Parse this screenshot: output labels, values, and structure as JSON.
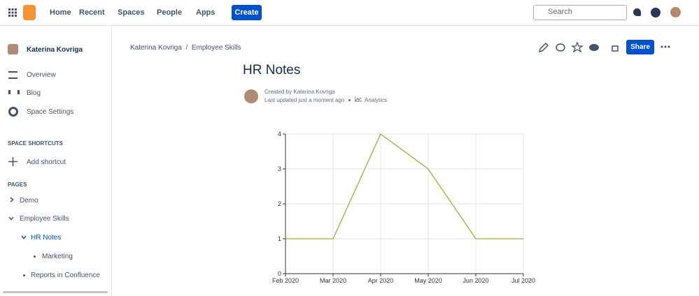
{
  "nav": {
    "items": [
      "Home",
      "Recent",
      "Spaces",
      "People",
      "Apps"
    ],
    "create": "Create",
    "search": "Search"
  },
  "sidebar": {
    "user": "Katerina Kovriga",
    "links": [
      "Overview",
      "Blog",
      "Space Settings"
    ],
    "shortcuts_heading": "SPACE SHORTCUTS",
    "add_shortcut": "Add shortcut",
    "pages_heading": "PAGES",
    "pages": [
      "Demo",
      "Employee Skills",
      "HR Notes",
      "Marketing",
      "Reports in Confluence"
    ]
  },
  "breadcrumb": {
    "items": [
      "Katerina Kovriga",
      "Employee Skills"
    ],
    "separator": "/"
  },
  "share": "Share",
  "page": {
    "title": "HR Notes",
    "created_by": "Created by Katerina Kovriga",
    "last_updated": "Last updated just a moment ago",
    "analytics": "Analytics"
  },
  "chart_data": {
    "type": "line",
    "categories": [
      "Feb 2020",
      "Mar 2020",
      "Apr 2020",
      "May 2020",
      "Jun 2020",
      "Jul 2020"
    ],
    "series": [
      {
        "color": "#98b13a",
        "values": [
          1,
          1,
          4,
          3,
          1,
          1
        ]
      }
    ],
    "ylim": [
      0,
      4
    ],
    "yticks": [
      0,
      1,
      2,
      3,
      4
    ],
    "grid": true
  }
}
